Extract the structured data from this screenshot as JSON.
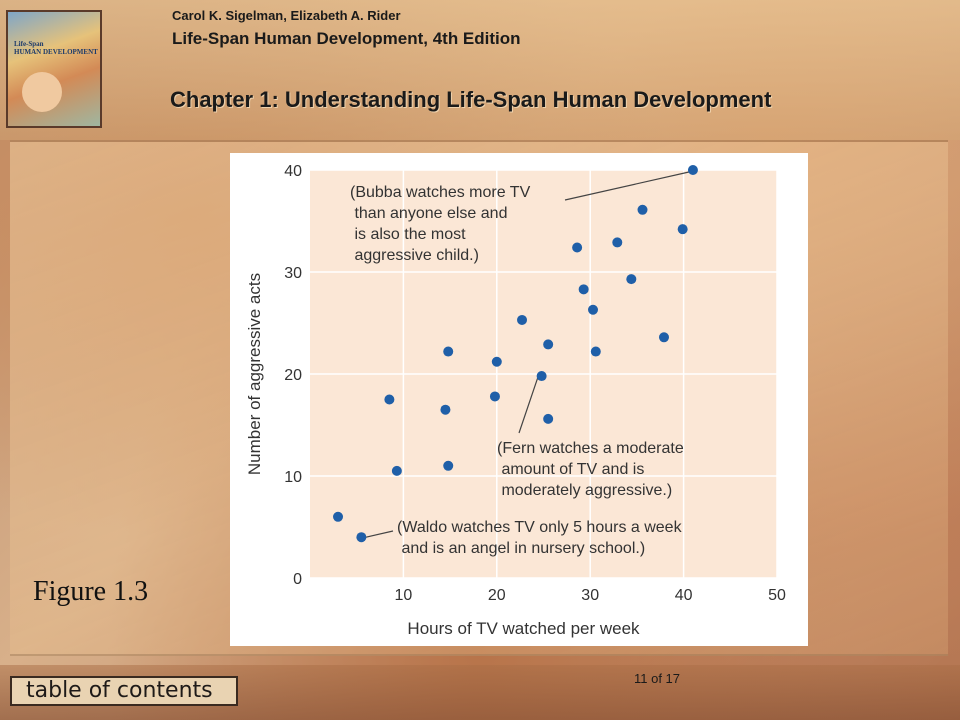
{
  "header": {
    "authors": "Carol K. Sigelman,  Elizabeth A. Rider",
    "book_title": "Life-Span Human Development,  4th Edition",
    "chapter_title": "Chapter 1: Understanding Life-Span Human Development",
    "cover": {
      "title_line1": "Life-Span",
      "title_line2": "HUMAN DEVELOPMENT"
    }
  },
  "figure_label": "Figure 1.3",
  "footer": {
    "toc_label": "table of contents",
    "page_counter": "11 of 17"
  },
  "colors": {
    "point": "#1f5fa8",
    "plot_bg": "#fbe7d6",
    "grid": "#ffffff"
  },
  "chart_data": {
    "type": "scatter",
    "xlabel": "Hours of TV watched per week",
    "ylabel": "Number of aggressive acts",
    "xlim": [
      0,
      50
    ],
    "ylim": [
      0,
      40
    ],
    "xticks": [
      10,
      20,
      30,
      40,
      50
    ],
    "yticks": [
      0,
      10,
      20,
      30,
      40
    ],
    "grid": true,
    "points": [
      {
        "x": 3,
        "y": 6
      },
      {
        "x": 5.5,
        "y": 4
      },
      {
        "x": 8.5,
        "y": 17.5
      },
      {
        "x": 9.3,
        "y": 10.5
      },
      {
        "x": 14.5,
        "y": 16.5
      },
      {
        "x": 14.8,
        "y": 22.2
      },
      {
        "x": 14.8,
        "y": 11
      },
      {
        "x": 19.8,
        "y": 17.8
      },
      {
        "x": 20,
        "y": 21.2
      },
      {
        "x": 22.7,
        "y": 25.3
      },
      {
        "x": 24.8,
        "y": 19.8
      },
      {
        "x": 25.5,
        "y": 22.9
      },
      {
        "x": 25.5,
        "y": 15.6
      },
      {
        "x": 28.6,
        "y": 32.4
      },
      {
        "x": 29.3,
        "y": 28.3
      },
      {
        "x": 30.3,
        "y": 26.3
      },
      {
        "x": 30.6,
        "y": 22.2
      },
      {
        "x": 32.9,
        "y": 32.9
      },
      {
        "x": 34.4,
        "y": 29.3
      },
      {
        "x": 35.6,
        "y": 36.1
      },
      {
        "x": 37.9,
        "y": 23.6
      },
      {
        "x": 39.9,
        "y": 34.2
      },
      {
        "x": 41,
        "y": 40
      }
    ],
    "annotations": [
      {
        "name": "bubba",
        "lines": [
          "(Bubba watches more TV",
          " than anyone else and",
          " is also the most",
          " aggressive child.)"
        ],
        "target": {
          "x": 41,
          "y": 40
        }
      },
      {
        "name": "fern",
        "lines": [
          "(Fern watches a moderate",
          " amount of TV and is",
          " moderately aggressive.)"
        ],
        "target": {
          "x": 24.8,
          "y": 19.8
        }
      },
      {
        "name": "waldo",
        "lines": [
          "(Waldo watches TV only 5 hours a week",
          " and is an angel in nursery school.)"
        ],
        "target": {
          "x": 5.5,
          "y": 4
        }
      }
    ]
  }
}
